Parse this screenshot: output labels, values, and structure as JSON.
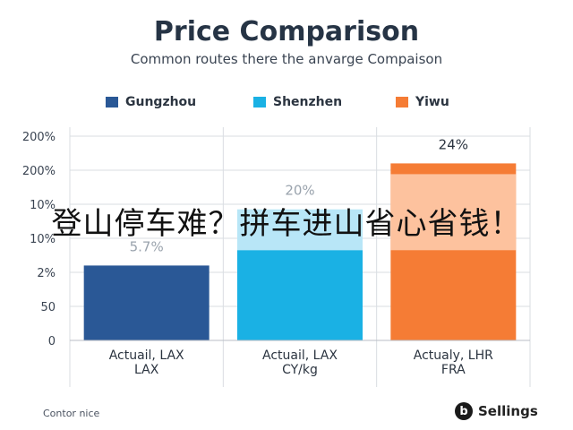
{
  "title": "Price Comparison",
  "subtitle": "Common routes there the anvarge Compaison",
  "overlay_text": "登山停车难？拼车进山省心省钱！",
  "footer": {
    "left_text": "Contor nice",
    "brand_name": "Sellings",
    "brand_logo_letter": "b"
  },
  "chart_data": {
    "type": "bar",
    "title": "Price Comparison",
    "subtitle": "Common routes there the anvarge Compaison",
    "y_tick_labels": [
      "0",
      "50",
      "2%",
      "10%",
      "10%",
      "200%",
      "200%"
    ],
    "categories": [
      [
        "Actuail, LAX",
        "LAX"
      ],
      [
        "Actuail, LAX",
        "CY/kg"
      ],
      [
        "Actualy, LHR",
        "FRA"
      ]
    ],
    "series": [
      {
        "name": "Gungzhou",
        "color": "#2a5896",
        "index": 0,
        "value_level": 2.2,
        "data_label": "5.7%"
      },
      {
        "name": "Shenzhen",
        "color": "#1ab1e4",
        "index": 1,
        "value_level": 2.65,
        "upper_level": 3.85,
        "upper_color": "#b8e6f7",
        "data_label": "20%"
      },
      {
        "name": "Yiwu",
        "color": "#f57c35",
        "index": 2,
        "value_level": 5.2,
        "lower_level": 2.65,
        "upper_color": "#ffd9c2",
        "data_label": "24%"
      }
    ],
    "grid": true,
    "legend_position": "top"
  }
}
